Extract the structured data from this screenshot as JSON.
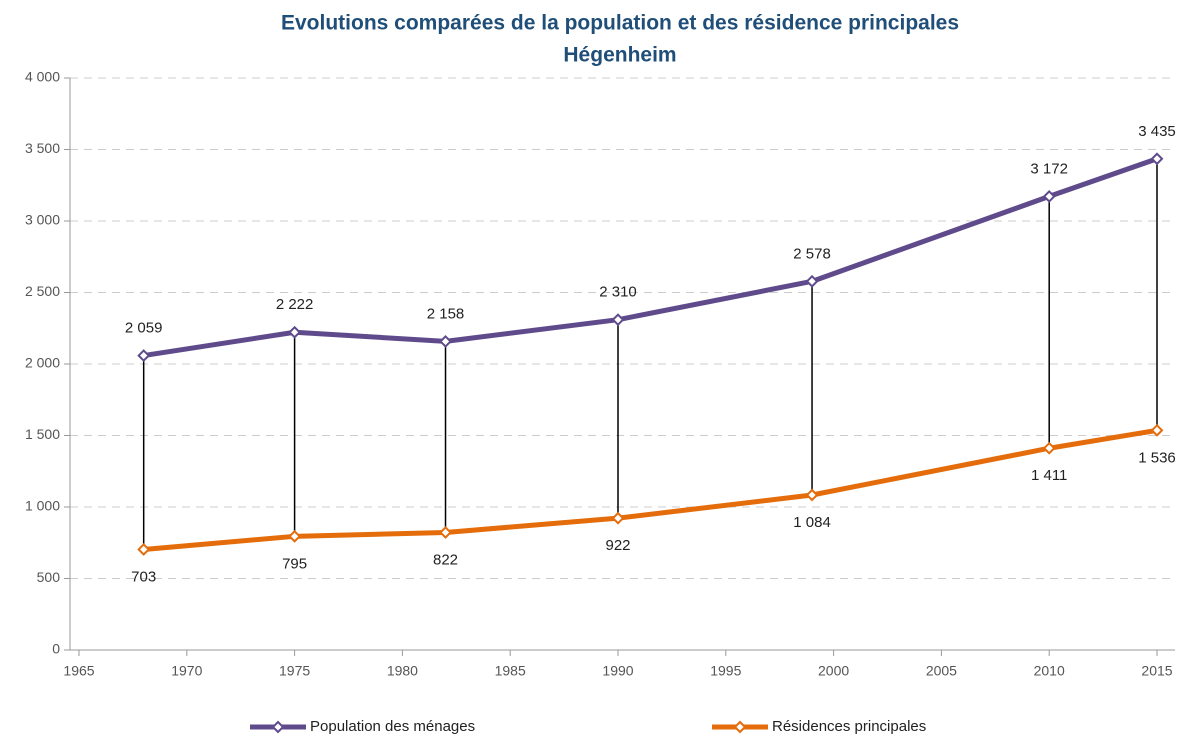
{
  "chart_data": {
    "type": "line",
    "title": "Evolutions comparées de la population et des résidence principales",
    "subtitle": "Hégenheim",
    "x": [
      1968,
      1975,
      1982,
      1990,
      1999,
      2010,
      2015
    ],
    "series": [
      {
        "name": "Population des ménages",
        "color": "#5f4b8b",
        "values": [
          2059,
          2222,
          2158,
          2310,
          2578,
          3172,
          3435
        ],
        "value_labels": [
          "2 059",
          "2 222",
          "2 158",
          "2 310",
          "2 578",
          "3 172",
          "3 435"
        ]
      },
      {
        "name": "Résidences principales",
        "color": "#e46c0a",
        "values": [
          703,
          795,
          822,
          922,
          1084,
          1411,
          1536
        ],
        "value_labels": [
          "703",
          "795",
          "822",
          "922",
          "1 084",
          "1 411",
          "1 536"
        ]
      }
    ],
    "xlim": [
      1965,
      2015
    ],
    "xticks": [
      1965,
      1970,
      1975,
      1980,
      1985,
      1990,
      1995,
      2000,
      2005,
      2010,
      2015
    ],
    "ylim": [
      0,
      4000
    ],
    "yticks": [
      0,
      500,
      {
        "value": 1000,
        "label": "1 000"
      },
      {
        "value": 1500,
        "label": "1 500"
      },
      {
        "value": 2000,
        "label": "2 000"
      },
      {
        "value": 2500,
        "label": "2 500"
      },
      {
        "value": 3000,
        "label": "3 000"
      },
      {
        "value": 3500,
        "label": "3 500"
      },
      {
        "value": 4000,
        "label": "4 000"
      }
    ],
    "grid": true,
    "legend": "bottom"
  }
}
